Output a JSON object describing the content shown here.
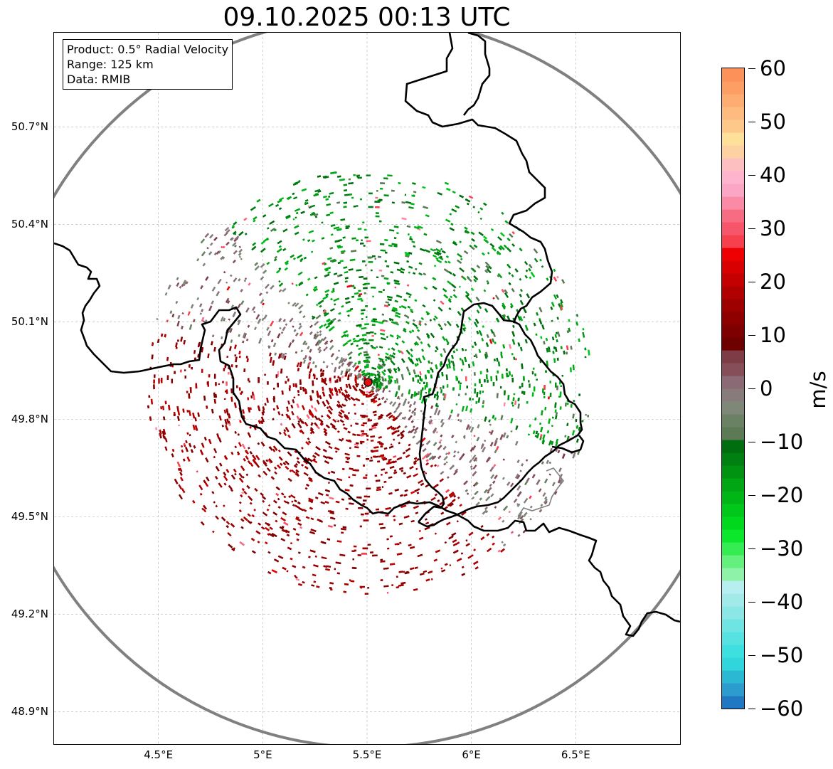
{
  "title": "09.10.2025 00:13 UTC",
  "info_box": {
    "product": "Product: 0.5° Radial Velocity",
    "range": "Range: 125 km",
    "source": "Data: RMIB"
  },
  "map": {
    "lon_range": [
      4.0,
      7.0
    ],
    "lat_range": [
      48.8,
      50.99
    ],
    "radar_site": {
      "lon": 5.505,
      "lat": 49.914
    },
    "range_km": 125,
    "lat_ticks": [
      {
        "value": 50.7,
        "label": "50.7°N"
      },
      {
        "value": 50.4,
        "label": "50.4°N"
      },
      {
        "value": 50.1,
        "label": "50.1°N"
      },
      {
        "value": 49.8,
        "label": "49.8°N"
      },
      {
        "value": 49.5,
        "label": "49.5°N"
      },
      {
        "value": 49.2,
        "label": "49.2°N"
      },
      {
        "value": 48.9,
        "label": "48.9°N"
      }
    ],
    "lon_ticks": [
      {
        "value": 4.5,
        "label": "4.5°E"
      },
      {
        "value": 5.0,
        "label": "5°E"
      },
      {
        "value": 5.5,
        "label": "5.5°E"
      },
      {
        "value": 6.0,
        "label": "6°E"
      },
      {
        "value": 6.5,
        "label": "6.5°E"
      }
    ],
    "grid": true
  },
  "colorbar": {
    "unit": "m/s",
    "min": -60,
    "max": 60,
    "ticks": [
      {
        "value": 60,
        "label": "60"
      },
      {
        "value": 50,
        "label": "50"
      },
      {
        "value": 40,
        "label": "40"
      },
      {
        "value": 30,
        "label": "30"
      },
      {
        "value": 20,
        "label": "20"
      },
      {
        "value": 10,
        "label": "10"
      },
      {
        "value": 0,
        "label": "0"
      },
      {
        "value": -10,
        "label": "−10"
      },
      {
        "value": -20,
        "label": "−20"
      },
      {
        "value": -30,
        "label": "−30"
      },
      {
        "value": -40,
        "label": "−40"
      },
      {
        "value": -50,
        "label": "−50"
      },
      {
        "value": -60,
        "label": "−60"
      }
    ],
    "colors": [
      "#1f78c1",
      "#2c9ccf",
      "#2bb8d3",
      "#30d6dc",
      "#3ee0df",
      "#55e2e0",
      "#6fe5e3",
      "#8ae7e6",
      "#a2eaea",
      "#b7eeef",
      "#8ef2a9",
      "#63f07d",
      "#35ec53",
      "#0be82b",
      "#00d81e",
      "#00c81a",
      "#00b617",
      "#00a614",
      "#009312",
      "#008010",
      "#006d0e",
      "#5c7a56",
      "#6a8164",
      "#7e8778",
      "#887b7c",
      "#8a6a74",
      "#864e59",
      "#7e3c46",
      "#6e0000",
      "#7e0000",
      "#8e0000",
      "#9e0000",
      "#b00000",
      "#c40000",
      "#d80000",
      "#ee0000",
      "#f6404d",
      "#f7566a",
      "#f86c82",
      "#fa8aa5",
      "#fca6c6",
      "#fdb4cc",
      "#fdbfbf",
      "#fed1a3",
      "#fee09b",
      "#fec88a",
      "#febb80",
      "#fdac72",
      "#fd9e64",
      "#fd915a"
    ]
  }
}
